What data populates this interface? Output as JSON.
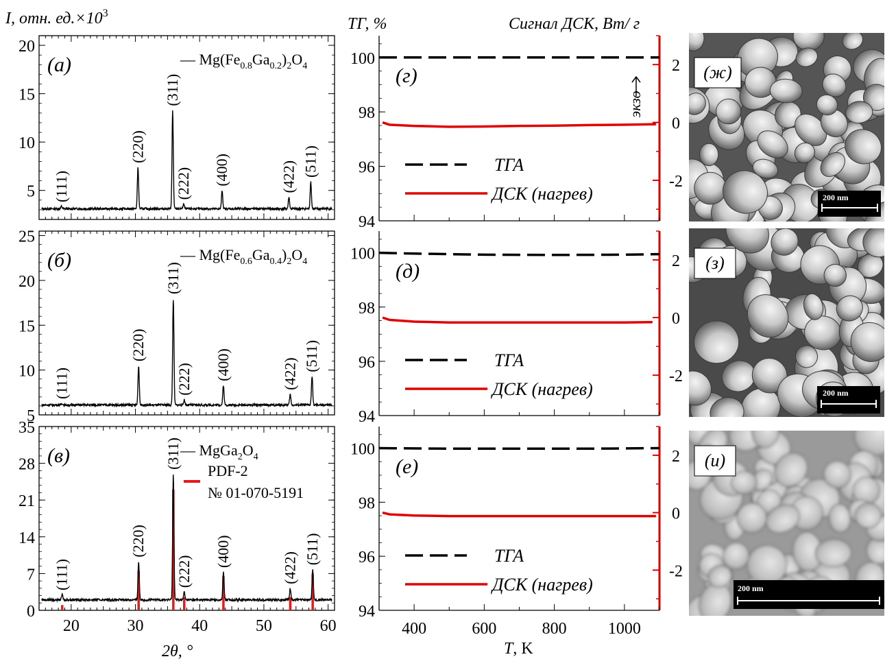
{
  "colors": {
    "black": "#000000",
    "red": "#e41a1c",
    "dsc": "#e00000",
    "sem_bg": "#9a9a9a"
  },
  "header": {
    "xrd_ylabel_main": "I,",
    "xrd_ylabel_rest": " отн. ед.×10",
    "xrd_ylabel_exp": "3",
    "tg_label": "ТГ, %",
    "dsc_label": "Сигнал  ДСК, Вт/ г"
  },
  "footer": {
    "xrd_xlabel": "2θ, °",
    "ta_xlabel_main": "T",
    "ta_xlabel_rest": ", K"
  },
  "chart_data": [
    {
      "id": "a",
      "type": "line",
      "panel_label": "(а)",
      "legend": "— Mg(Fe0.8Ga0.2)2O4",
      "legend_parts": {
        "dash": "—",
        "base": "Mg(Fe",
        "s1": "0.8",
        "mid": "Ga",
        "s2": "0.2",
        "close": ")",
        "s3": "2",
        "tail": "O",
        "s4": "4"
      },
      "xlim": [
        15,
        61
      ],
      "ylim": [
        2,
        21
      ],
      "yticks": [
        "20",
        "15",
        "10",
        "5"
      ],
      "ytick_values": [
        20,
        15,
        10,
        5
      ],
      "baseline": 3.1,
      "peaks": [
        {
          "hkl": "(111)",
          "x": 18.5,
          "y": 3.35
        },
        {
          "hkl": "(220)",
          "x": 30.4,
          "y": 7.4
        },
        {
          "hkl": "(311)",
          "x": 35.8,
          "y": 13.3
        },
        {
          "hkl": "(222)",
          "x": 37.5,
          "y": 3.6
        },
        {
          "hkl": "(400)",
          "x": 43.5,
          "y": 5.0
        },
        {
          "hkl": "(422)",
          "x": 53.9,
          "y": 4.3
        },
        {
          "hkl": "(511)",
          "x": 57.3,
          "y": 5.9
        }
      ]
    },
    {
      "id": "b",
      "type": "line",
      "panel_label": "(б)",
      "legend": "— Mg(Fe0.6Ga0.4)2O4",
      "legend_parts": {
        "dash": "—",
        "base": "Mg(Fe",
        "s1": "0.6",
        "mid": "Ga",
        "s2": "0.4",
        "close": ")",
        "s3": "2",
        "tail": "O",
        "s4": "4"
      },
      "xlim": [
        15,
        61
      ],
      "ylim": [
        5,
        25.5
      ],
      "yticks": [
        "25",
        "20",
        "15",
        "10",
        "5"
      ],
      "ytick_values": [
        25,
        20,
        15,
        10,
        5
      ],
      "baseline": 6.1,
      "peaks": [
        {
          "hkl": "(111)",
          "x": 18.6,
          "y": 6.3
        },
        {
          "hkl": "(220)",
          "x": 30.5,
          "y": 10.5
        },
        {
          "hkl": "(311)",
          "x": 35.9,
          "y": 18.0
        },
        {
          "hkl": "(222)",
          "x": 37.6,
          "y": 6.7
        },
        {
          "hkl": "(400)",
          "x": 43.7,
          "y": 8.3
        },
        {
          "hkl": "(422)",
          "x": 54.1,
          "y": 7.3
        },
        {
          "hkl": "(511)",
          "x": 57.5,
          "y": 9.3
        }
      ]
    },
    {
      "id": "c",
      "type": "line",
      "panel_label": "(в)",
      "legend": "— MgGa2O4",
      "legend_parts": {
        "dash": "—",
        "base": "MgGa",
        "s1": "2",
        "tail": "O",
        "s2": "4"
      },
      "legend2_line1": "PDF-2",
      "legend2_line2": "№ 01-070-5191",
      "xlim": [
        15,
        61
      ],
      "ylim": [
        0,
        35
      ],
      "yticks": [
        "35",
        "28",
        "21",
        "14",
        "7",
        "0"
      ],
      "ytick_values": [
        35,
        28,
        21,
        14,
        7,
        0
      ],
      "xticks": [
        "20",
        "30",
        "40",
        "50",
        "60"
      ],
      "xtick_values": [
        20,
        30,
        40,
        50,
        60
      ],
      "baseline": 2.0,
      "peaks": [
        {
          "hkl": "(111)",
          "x": 18.6,
          "y": 3.0
        },
        {
          "hkl": "(220)",
          "x": 30.5,
          "y": 9.3
        },
        {
          "hkl": "(311)",
          "x": 35.9,
          "y": 26.0
        },
        {
          "hkl": "(222)",
          "x": 37.6,
          "y": 3.5
        },
        {
          "hkl": "(400)",
          "x": 43.7,
          "y": 7.3
        },
        {
          "hkl": "(422)",
          "x": 54.1,
          "y": 4.2
        },
        {
          "hkl": "(511)",
          "x": 57.6,
          "y": 7.8
        }
      ],
      "reference_sticks": [
        {
          "x": 18.6,
          "y": 1.0
        },
        {
          "x": 30.5,
          "y": 7.5
        },
        {
          "x": 35.9,
          "y": 23.0
        },
        {
          "x": 37.6,
          "y": 2.5
        },
        {
          "x": 43.7,
          "y": 6.5
        },
        {
          "x": 54.1,
          "y": 2.5
        },
        {
          "x": 57.6,
          "y": 7.0
        }
      ]
    },
    {
      "id": "g",
      "type": "line",
      "panel_label": "(г)",
      "xlim": [
        300,
        1100
      ],
      "ylim_left": [
        94,
        100.8
      ],
      "ylim_right": [
        -3.4,
        3.0
      ],
      "yticks_left": [
        "100",
        "98",
        "96",
        "94"
      ],
      "ytick_values_left": [
        100,
        98,
        96,
        94
      ],
      "yticks_right": [
        "2",
        "0",
        "-2"
      ],
      "ytick_values_right": [
        2,
        0,
        -2
      ],
      "legend_tga": "ТГА",
      "legend_dsc": "ДСК (нагрев)",
      "exo_label": "экзо",
      "tga": {
        "x": [
          300,
          1100
        ],
        "y": [
          100.0,
          100.0
        ]
      },
      "dsc": {
        "x": [
          310,
          330,
          400,
          500,
          600,
          700,
          800,
          900,
          1000,
          1090
        ],
        "y": [
          0.0,
          -0.08,
          -0.12,
          -0.15,
          -0.14,
          -0.12,
          -0.11,
          -0.09,
          -0.08,
          -0.06
        ]
      }
    },
    {
      "id": "d",
      "type": "line",
      "panel_label": "(д)",
      "xlim": [
        300,
        1100
      ],
      "ylim_left": [
        94,
        100.8
      ],
      "ylim_right": [
        -3.4,
        3.0
      ],
      "yticks_left": [
        "100",
        "98",
        "96",
        "94"
      ],
      "ytick_values_left": [
        100,
        98,
        96,
        94
      ],
      "yticks_right": [
        "2",
        "0",
        "-2"
      ],
      "ytick_values_right": [
        2,
        0,
        -2
      ],
      "legend_tga": "ТГА",
      "legend_dsc": "ДСК (нагрев)",
      "tga": {
        "x": [
          300,
          400,
          600,
          800,
          1000,
          1100
        ],
        "y": [
          100.0,
          99.97,
          99.93,
          99.92,
          99.93,
          99.95
        ]
      },
      "dsc": {
        "x": [
          310,
          330,
          400,
          500,
          600,
          700,
          800,
          900,
          1000,
          1080
        ],
        "y": [
          0.0,
          -0.08,
          -0.14,
          -0.17,
          -0.17,
          -0.17,
          -0.17,
          -0.17,
          -0.17,
          -0.16
        ]
      }
    },
    {
      "id": "e",
      "type": "line",
      "panel_label": "(е)",
      "xlim": [
        300,
        1100
      ],
      "ylim_left": [
        94,
        100.8
      ],
      "ylim_right": [
        -3.4,
        3.0
      ],
      "yticks_left": [
        "100",
        "98",
        "96",
        "94"
      ],
      "ytick_values_left": [
        100,
        98,
        96,
        94
      ],
      "yticks_right": [
        "2",
        "0",
        "-2"
      ],
      "ytick_values_right": [
        2,
        0,
        -2
      ],
      "xticks": [
        "400",
        "600",
        "800",
        "1000"
      ],
      "xtick_values": [
        400,
        600,
        800,
        1000
      ],
      "legend_tga": "ТГА",
      "legend_dsc": "ДСК (нагрев)",
      "tga": {
        "x": [
          300,
          500,
          700,
          900,
          1100
        ],
        "y": [
          100.0,
          99.98,
          99.98,
          99.98,
          100.0
        ]
      },
      "dsc": {
        "x": [
          310,
          330,
          400,
          500,
          600,
          700,
          800,
          900,
          1000,
          1090
        ],
        "y": [
          0.0,
          -0.06,
          -0.1,
          -0.12,
          -0.12,
          -0.12,
          -0.12,
          -0.12,
          -0.12,
          -0.12
        ]
      }
    }
  ],
  "sem": [
    {
      "id": "zh",
      "label": "(ж)",
      "scale_bar": "200 nm"
    },
    {
      "id": "z",
      "label": "(з)",
      "scale_bar": "200 nm"
    },
    {
      "id": "i",
      "label": "(и)",
      "scale_bar": "200 nm"
    }
  ]
}
